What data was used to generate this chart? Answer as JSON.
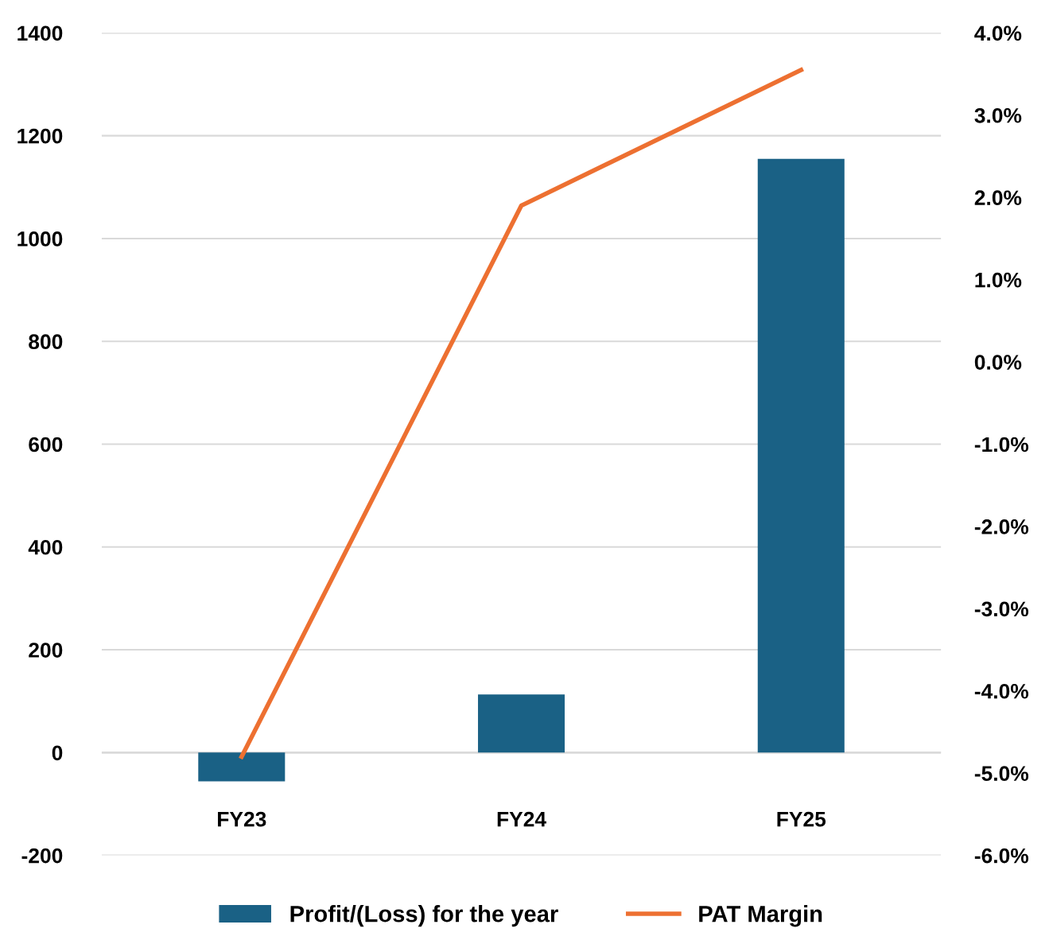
{
  "chart_data": {
    "type": "bar",
    "categories": [
      "FY23",
      "FY24",
      "FY25"
    ],
    "series": [
      {
        "name": "Profit/(Loss) for the year",
        "color": "#1a6185",
        "values": [
          -56,
          113,
          1155
        ]
      },
      {
        "name": "PAT Margin",
        "type": "line",
        "axis": "y2",
        "color": "#ed7031",
        "values": [
          -4.8,
          1.9,
          3.55
        ]
      }
    ],
    "ylim": [
      -200,
      1400
    ],
    "yticks": [
      -200,
      0,
      200,
      400,
      600,
      800,
      1000,
      1200,
      1400
    ],
    "y2lim": [
      -6.0,
      4.0
    ],
    "y2ticks": [
      {
        "value": -6.0,
        "label": "-6.0%"
      },
      {
        "value": -5.0,
        "label": "-5.0%"
      },
      {
        "value": -4.0,
        "label": "-4.0%"
      },
      {
        "value": -3.0,
        "label": "-3.0%"
      },
      {
        "value": -2.0,
        "label": "-2.0%"
      },
      {
        "value": -1.0,
        "label": "-1.0%"
      },
      {
        "value": 0.0,
        "label": "0.0%"
      },
      {
        "value": 1.0,
        "label": "1.0%"
      },
      {
        "value": 2.0,
        "label": "2.0%"
      },
      {
        "value": 3.0,
        "label": "3.0%"
      },
      {
        "value": 4.0,
        "label": "4.0%"
      }
    ],
    "grid": "y",
    "legend": "bottom",
    "marker": "none",
    "line_style": "solid"
  }
}
